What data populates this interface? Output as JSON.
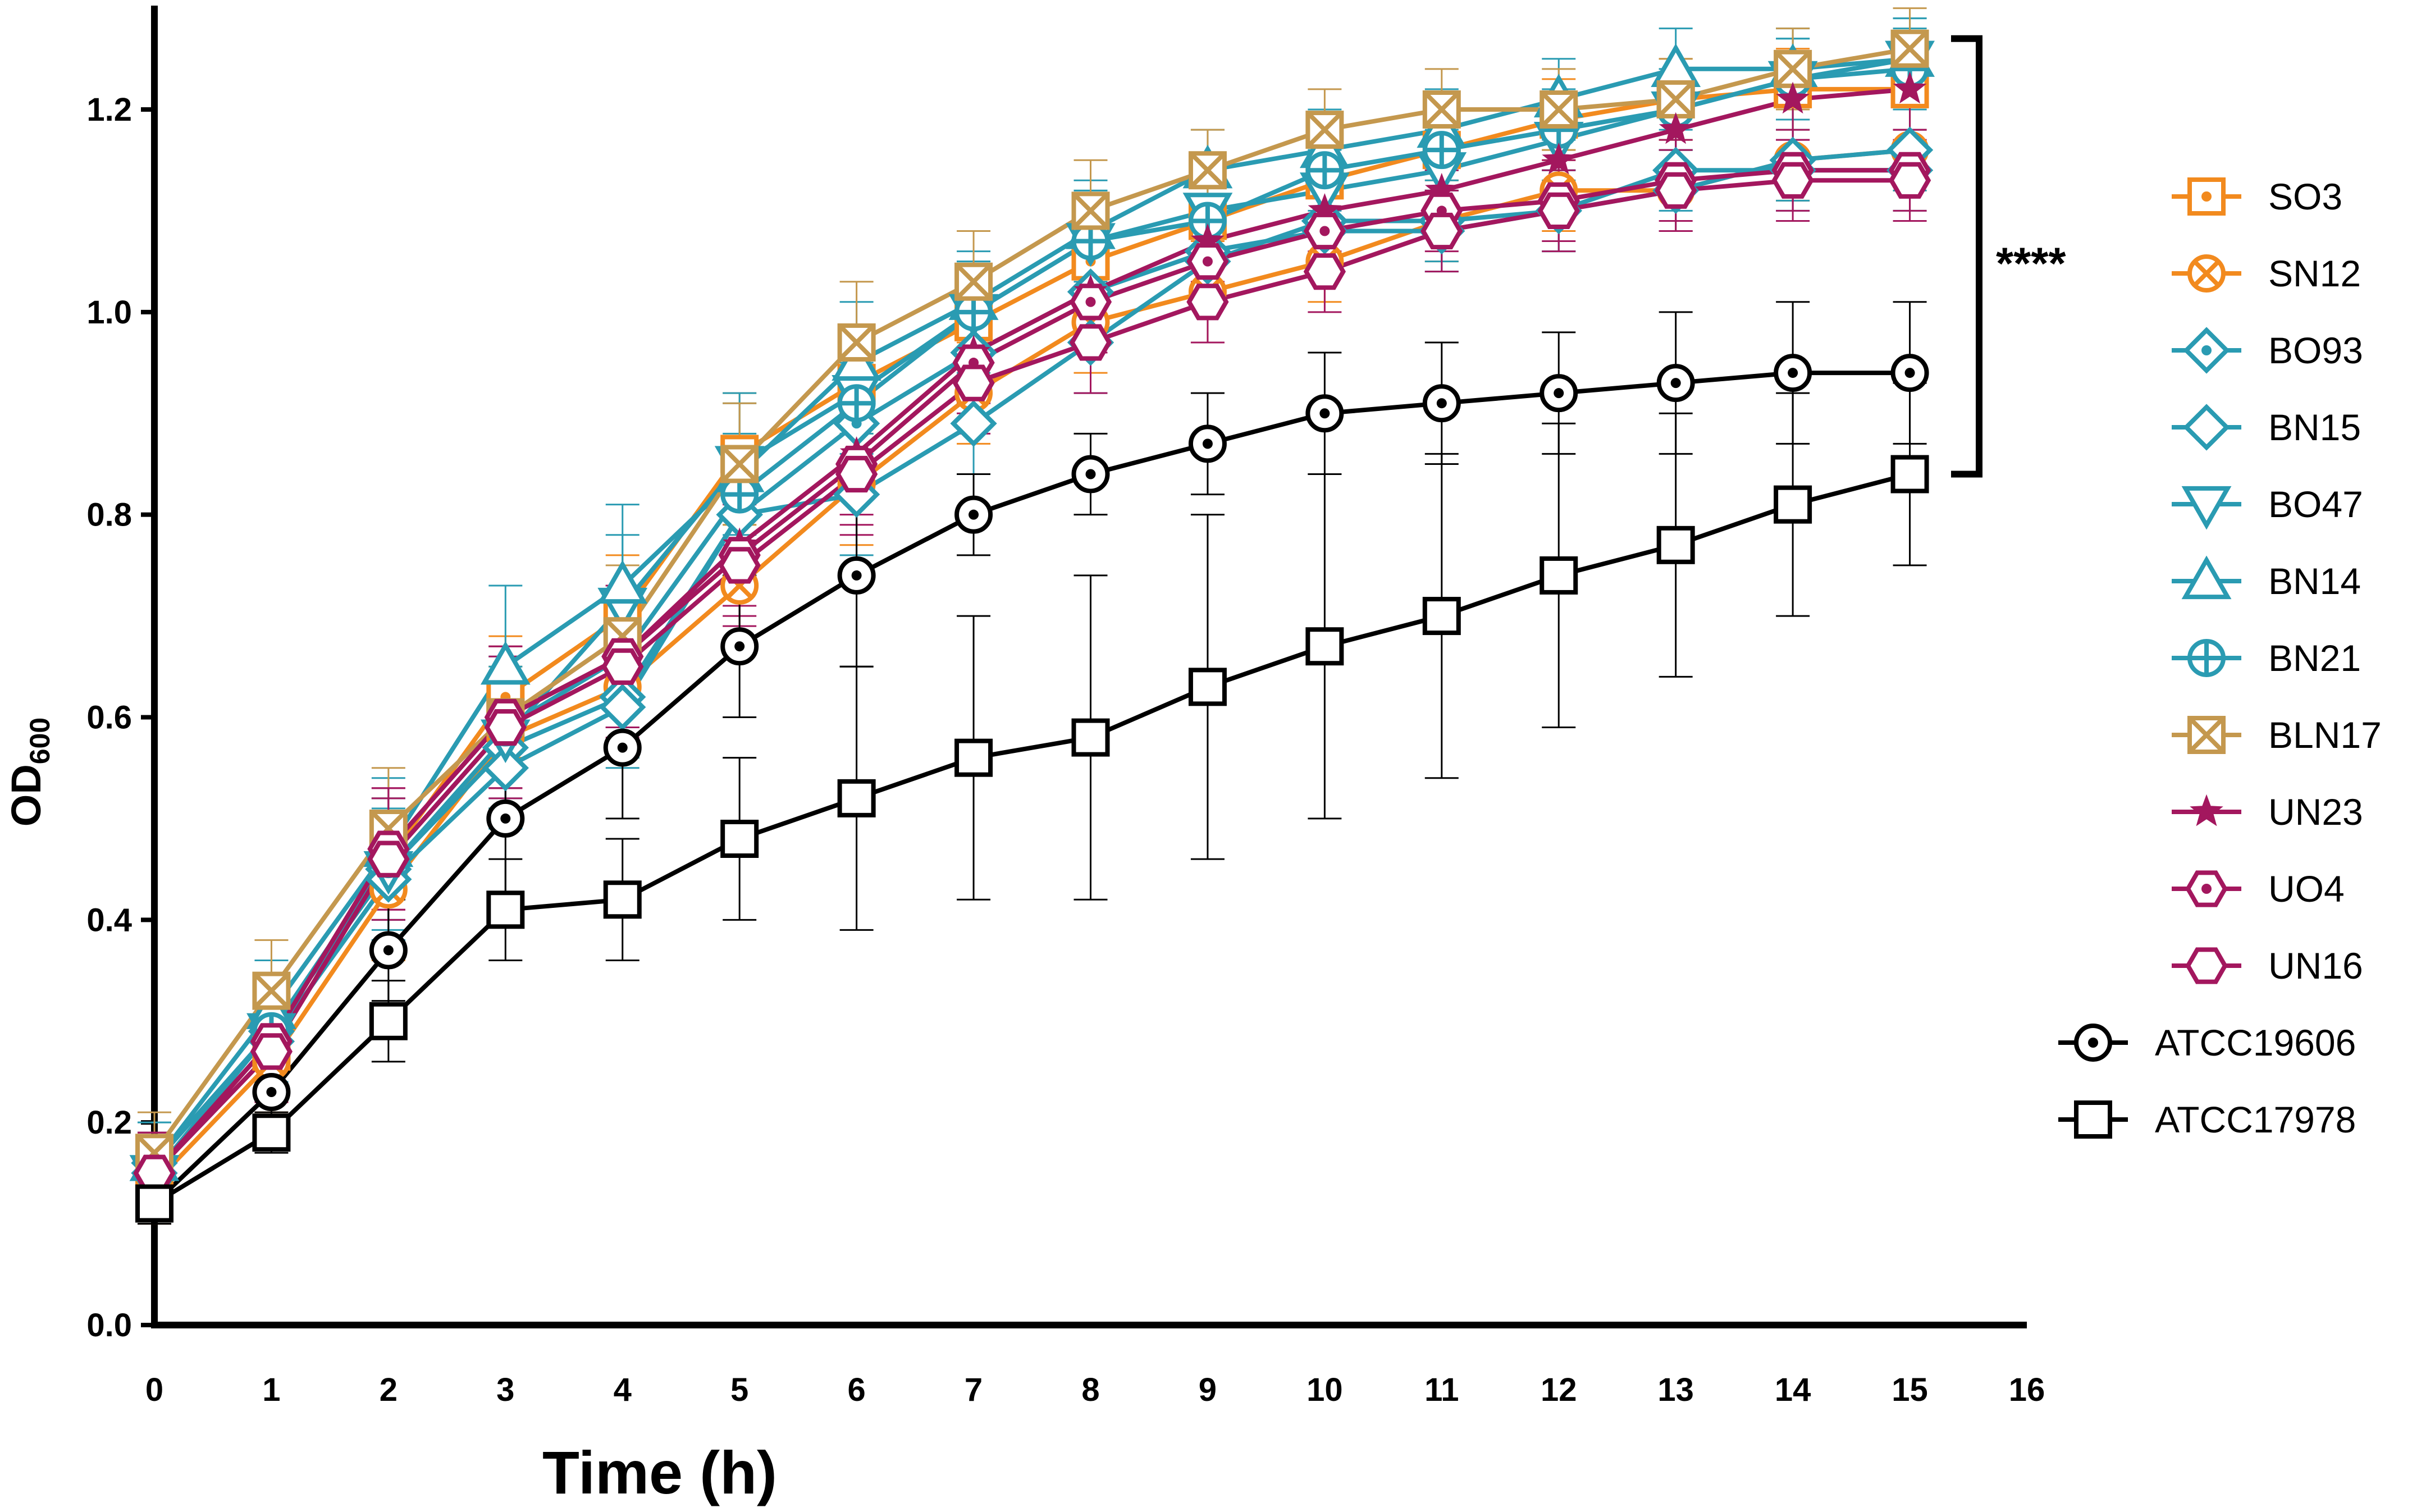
{
  "chart_data": {
    "type": "line",
    "title": "",
    "xlabel": "Time (h)",
    "ylabel_main": "OD",
    "ylabel_sub": "600",
    "xlim": [
      0,
      16
    ],
    "ylim": [
      0.0,
      1.3
    ],
    "xticks": [
      "0",
      "1",
      "2",
      "3",
      "4",
      "5",
      "6",
      "7",
      "8",
      "9",
      "10",
      "11",
      "12",
      "13",
      "14",
      "15",
      "16"
    ],
    "yticks": [
      "0.0",
      "0.2",
      "0.4",
      "0.6",
      "0.8",
      "1.0",
      "1.2"
    ],
    "x": [
      0,
      1,
      2,
      3,
      4,
      5,
      6,
      7,
      8,
      9,
      10,
      11,
      12,
      13,
      14,
      15
    ],
    "significance": {
      "label": "****",
      "y_top": 1.27,
      "y_bottom": 0.84
    },
    "series": [
      {
        "name": "SO3",
        "color": "#F28A1E",
        "marker": "square-dot",
        "values": [
          0.15,
          0.27,
          0.46,
          0.62,
          0.7,
          0.86,
          0.93,
          0.99,
          1.05,
          1.09,
          1.13,
          1.16,
          1.19,
          1.21,
          1.22,
          1.22
        ],
        "err": [
          0.04,
          0.05,
          0.06,
          0.06,
          0.06,
          0.06,
          0.05,
          0.05,
          0.04,
          0.04,
          0.04,
          0.04,
          0.04,
          0.04,
          0.04,
          0.04
        ]
      },
      {
        "name": "SN12",
        "color": "#F28A1E",
        "marker": "circle-x",
        "values": [
          0.14,
          0.26,
          0.43,
          0.58,
          0.63,
          0.73,
          0.83,
          0.92,
          0.99,
          1.02,
          1.05,
          1.09,
          1.12,
          1.12,
          1.15,
          1.16
        ],
        "err": [
          0.04,
          0.05,
          0.07,
          0.07,
          0.07,
          0.06,
          0.06,
          0.05,
          0.05,
          0.05,
          0.04,
          0.04,
          0.04,
          0.04,
          0.04,
          0.04
        ]
      },
      {
        "name": "BO93",
        "color": "#2A9BB2",
        "marker": "diamond-dot",
        "values": [
          0.16,
          0.29,
          0.45,
          0.57,
          0.62,
          0.8,
          0.89,
          0.96,
          1.02,
          1.06,
          1.08,
          1.08,
          1.1,
          1.14,
          1.14,
          1.14
        ],
        "err": [
          0.04,
          0.05,
          0.07,
          0.07,
          0.06,
          0.06,
          0.06,
          0.05,
          0.05,
          0.04,
          0.04,
          0.04,
          0.04,
          0.04,
          0.04,
          0.04
        ]
      },
      {
        "name": "BN15",
        "color": "#2A9BB2",
        "marker": "diamond",
        "values": [
          0.15,
          0.28,
          0.44,
          0.55,
          0.61,
          0.8,
          0.82,
          0.89,
          0.97,
          1.05,
          1.09,
          1.09,
          1.1,
          1.12,
          1.15,
          1.16
        ],
        "err": [
          0.04,
          0.05,
          0.06,
          0.06,
          0.06,
          0.07,
          0.06,
          0.05,
          0.05,
          0.04,
          0.04,
          0.04,
          0.04,
          0.04,
          0.04,
          0.04
        ]
      },
      {
        "name": "BO47",
        "color": "#2A9BB2",
        "marker": "triangle-down",
        "values": [
          0.15,
          0.29,
          0.45,
          0.58,
          0.71,
          0.85,
          0.92,
          1.0,
          1.07,
          1.1,
          1.12,
          1.14,
          1.17,
          1.2,
          1.23,
          1.25
        ],
        "err": [
          0.04,
          0.05,
          0.06,
          0.07,
          0.07,
          0.07,
          0.06,
          0.05,
          0.05,
          0.04,
          0.04,
          0.04,
          0.04,
          0.04,
          0.04,
          0.04
        ]
      },
      {
        "name": "BN14",
        "color": "#2A9BB2",
        "marker": "triangle-up",
        "values": [
          0.16,
          0.31,
          0.47,
          0.65,
          0.73,
          0.84,
          0.95,
          1.01,
          1.08,
          1.14,
          1.16,
          1.18,
          1.21,
          1.24,
          1.24,
          1.25
        ],
        "err": [
          0.04,
          0.05,
          0.07,
          0.08,
          0.08,
          0.07,
          0.06,
          0.05,
          0.05,
          0.04,
          0.04,
          0.04,
          0.04,
          0.04,
          0.04,
          0.04
        ]
      },
      {
        "name": "BN21",
        "color": "#2A9BB2",
        "marker": "circle-plus",
        "values": [
          0.15,
          0.29,
          0.46,
          0.59,
          0.66,
          0.82,
          0.91,
          1.0,
          1.07,
          1.09,
          1.14,
          1.16,
          1.18,
          1.2,
          1.23,
          1.24
        ],
        "err": [
          0.04,
          0.05,
          0.06,
          0.07,
          0.07,
          0.06,
          0.06,
          0.05,
          0.05,
          0.04,
          0.04,
          0.04,
          0.04,
          0.04,
          0.04,
          0.04
        ]
      },
      {
        "name": "BLN17",
        "color": "#C4984E",
        "marker": "square-x",
        "values": [
          0.17,
          0.33,
          0.49,
          0.6,
          0.68,
          0.85,
          0.97,
          1.03,
          1.1,
          1.14,
          1.18,
          1.2,
          1.2,
          1.21,
          1.24,
          1.26
        ],
        "err": [
          0.04,
          0.05,
          0.06,
          0.07,
          0.07,
          0.06,
          0.06,
          0.05,
          0.05,
          0.04,
          0.04,
          0.04,
          0.04,
          0.04,
          0.04,
          0.04
        ]
      },
      {
        "name": "UN23",
        "color": "#A3175E",
        "marker": "star",
        "values": [
          0.15,
          0.28,
          0.47,
          0.6,
          0.66,
          0.77,
          0.86,
          0.96,
          1.02,
          1.07,
          1.1,
          1.12,
          1.15,
          1.18,
          1.21,
          1.22
        ],
        "err": [
          0.04,
          0.05,
          0.06,
          0.07,
          0.07,
          0.06,
          0.06,
          0.05,
          0.05,
          0.04,
          0.04,
          0.04,
          0.04,
          0.04,
          0.04,
          0.04
        ]
      },
      {
        "name": "UO4",
        "color": "#A3175E",
        "marker": "hexagon-dot",
        "values": [
          0.15,
          0.28,
          0.47,
          0.6,
          0.66,
          0.76,
          0.85,
          0.95,
          1.01,
          1.05,
          1.08,
          1.1,
          1.11,
          1.13,
          1.14,
          1.14
        ],
        "err": [
          0.04,
          0.05,
          0.06,
          0.07,
          0.07,
          0.06,
          0.06,
          0.05,
          0.05,
          0.04,
          0.04,
          0.04,
          0.04,
          0.04,
          0.04,
          0.04
        ]
      },
      {
        "name": "UN16",
        "color": "#A3175E",
        "marker": "hexagon",
        "values": [
          0.15,
          0.27,
          0.46,
          0.59,
          0.65,
          0.75,
          0.84,
          0.93,
          0.97,
          1.01,
          1.04,
          1.08,
          1.1,
          1.12,
          1.13,
          1.13
        ],
        "err": [
          0.04,
          0.05,
          0.06,
          0.07,
          0.07,
          0.06,
          0.06,
          0.05,
          0.05,
          0.04,
          0.04,
          0.04,
          0.04,
          0.04,
          0.04,
          0.04
        ]
      },
      {
        "name": "ATCC19606",
        "color": "#000000",
        "marker": "circle-dot",
        "values": [
          0.12,
          0.23,
          0.37,
          0.5,
          0.57,
          0.67,
          0.74,
          0.8,
          0.84,
          0.87,
          0.9,
          0.91,
          0.92,
          0.93,
          0.94,
          0.94
        ],
        "err": [
          0.02,
          0.03,
          0.05,
          0.08,
          0.07,
          0.07,
          0.09,
          0.04,
          0.04,
          0.05,
          0.06,
          0.06,
          0.06,
          0.07,
          0.07,
          0.07
        ]
      },
      {
        "name": "ATCC17978",
        "color": "#000000",
        "marker": "square",
        "values": [
          0.12,
          0.19,
          0.3,
          0.41,
          0.42,
          0.48,
          0.52,
          0.56,
          0.58,
          0.63,
          0.67,
          0.7,
          0.74,
          0.77,
          0.81,
          0.84
        ],
        "err": [
          0.02,
          0.02,
          0.04,
          0.05,
          0.06,
          0.08,
          0.13,
          0.14,
          0.16,
          0.17,
          0.17,
          0.16,
          0.15,
          0.13,
          0.11,
          0.09
        ]
      }
    ]
  }
}
